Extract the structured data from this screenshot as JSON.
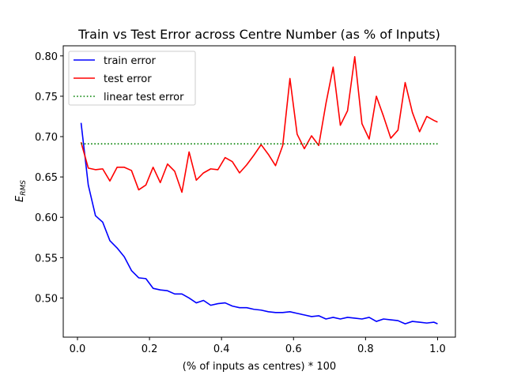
{
  "chart_data": {
    "type": "line",
    "title": "Train vs Test Error across Centre Number (as % of Inputs)",
    "xlabel": "(% of inputs as centres) * 100",
    "ylabel": "E",
    "ylabel_sub": "RMS",
    "xlim": [
      -0.0395,
      1.0495
    ],
    "ylim": [
      0.4515,
      0.8125
    ],
    "xticks": [
      0.0,
      0.2,
      0.4,
      0.6,
      0.8,
      1.0
    ],
    "xtick_labels": [
      "0.0",
      "0.2",
      "0.4",
      "0.6",
      "0.8",
      "1.0"
    ],
    "yticks": [
      0.5,
      0.55,
      0.6,
      0.65,
      0.7,
      0.75,
      0.8
    ],
    "ytick_labels": [
      "0.50",
      "0.55",
      "0.60",
      "0.65",
      "0.70",
      "0.75",
      "0.80"
    ],
    "legend_position": "top-left",
    "series": [
      {
        "name": "train error",
        "color": "#0000ff",
        "style": "solid",
        "x": [
          0.01,
          0.03,
          0.05,
          0.07,
          0.09,
          0.11,
          0.13,
          0.15,
          0.17,
          0.19,
          0.21,
          0.23,
          0.25,
          0.27,
          0.29,
          0.31,
          0.33,
          0.35,
          0.37,
          0.39,
          0.41,
          0.43,
          0.45,
          0.47,
          0.49,
          0.51,
          0.53,
          0.55,
          0.57,
          0.59,
          0.61,
          0.63,
          0.65,
          0.67,
          0.69,
          0.71,
          0.73,
          0.75,
          0.77,
          0.79,
          0.81,
          0.83,
          0.85,
          0.87,
          0.89,
          0.91,
          0.93,
          0.95,
          0.97,
          0.99,
          1.0
        ],
        "values": [
          0.717,
          0.64,
          0.602,
          0.594,
          0.571,
          0.562,
          0.551,
          0.534,
          0.525,
          0.524,
          0.512,
          0.51,
          0.509,
          0.505,
          0.505,
          0.5,
          0.494,
          0.497,
          0.491,
          0.493,
          0.494,
          0.49,
          0.488,
          0.488,
          0.486,
          0.485,
          0.483,
          0.482,
          0.482,
          0.483,
          0.481,
          0.479,
          0.477,
          0.478,
          0.474,
          0.476,
          0.474,
          0.476,
          0.475,
          0.474,
          0.476,
          0.471,
          0.474,
          0.473,
          0.472,
          0.468,
          0.471,
          0.47,
          0.469,
          0.47,
          0.468
        ]
      },
      {
        "name": "test error",
        "color": "#ff0000",
        "style": "solid",
        "x": [
          0.01,
          0.03,
          0.05,
          0.07,
          0.09,
          0.11,
          0.13,
          0.15,
          0.17,
          0.19,
          0.21,
          0.23,
          0.25,
          0.27,
          0.29,
          0.31,
          0.33,
          0.35,
          0.37,
          0.39,
          0.41,
          0.43,
          0.45,
          0.47,
          0.49,
          0.51,
          0.53,
          0.55,
          0.57,
          0.59,
          0.61,
          0.63,
          0.65,
          0.67,
          0.69,
          0.71,
          0.73,
          0.75,
          0.77,
          0.79,
          0.81,
          0.83,
          0.85,
          0.87,
          0.89,
          0.91,
          0.93,
          0.95,
          0.97,
          0.99,
          1.0
        ],
        "values": [
          0.693,
          0.661,
          0.659,
          0.66,
          0.645,
          0.662,
          0.662,
          0.658,
          0.634,
          0.64,
          0.662,
          0.643,
          0.666,
          0.657,
          0.631,
          0.681,
          0.646,
          0.655,
          0.66,
          0.659,
          0.674,
          0.669,
          0.655,
          0.665,
          0.677,
          0.69,
          0.678,
          0.664,
          0.689,
          0.772,
          0.703,
          0.685,
          0.701,
          0.689,
          0.741,
          0.786,
          0.714,
          0.732,
          0.799,
          0.716,
          0.697,
          0.75,
          0.725,
          0.698,
          0.708,
          0.767,
          0.73,
          0.706,
          0.725,
          0.72,
          0.718
        ]
      },
      {
        "name": "linear test error",
        "color": "#008000",
        "style": "dotted",
        "x": [
          0.01,
          1.0
        ],
        "values": [
          0.691,
          0.691
        ]
      }
    ]
  }
}
